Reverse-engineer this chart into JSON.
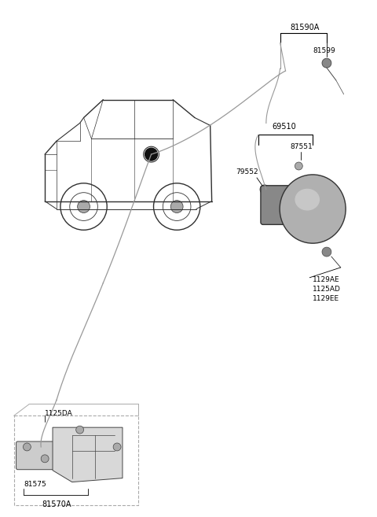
{
  "bg_color": "#ffffff",
  "fig_width": 4.8,
  "fig_height": 6.57,
  "dpi": 100,
  "colors": {
    "car_line": "#303030",
    "cable": "#999999",
    "part_fill": "#aaaaaa",
    "part_fill2": "#cccccc",
    "part_stroke": "#444444",
    "label": "#000000"
  },
  "labels": {
    "top_bracket": "81590A",
    "top_screw": "81599",
    "mid_bracket": "69510",
    "mid_inner": "87551",
    "mid_left": "79552",
    "bot_right1": "1129AE",
    "bot_right2": "1125AD",
    "bot_right3": "1129EE",
    "asm_top": "1125DA",
    "asm_mid": "81575",
    "asm_bot": "81570A"
  }
}
